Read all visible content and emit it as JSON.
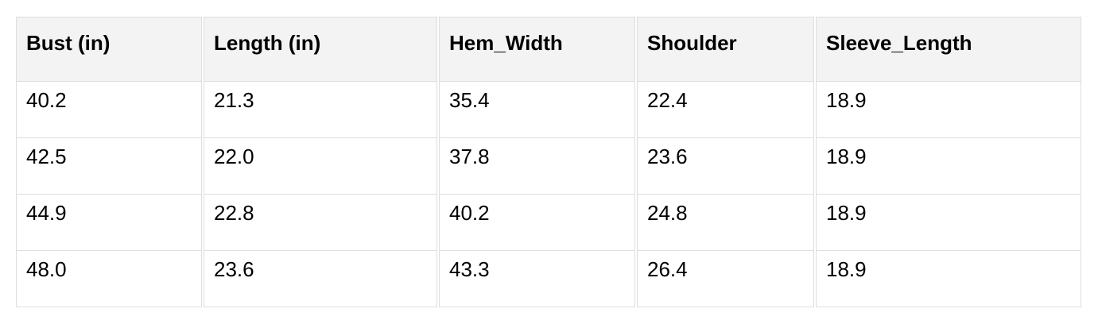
{
  "chart_data": {
    "type": "table",
    "title": "",
    "columns": [
      "Bust (in)",
      "Length (in)",
      "Hem_Width",
      "Shoulder",
      "Sleeve_Length"
    ],
    "rows": [
      [
        "40.2",
        "21.3",
        "35.4",
        "22.4",
        "18.9"
      ],
      [
        "42.5",
        "22.0",
        "37.8",
        "23.6",
        "18.9"
      ],
      [
        "44.9",
        "22.8",
        "40.2",
        "24.8",
        "18.9"
      ],
      [
        "48.0",
        "23.6",
        "43.3",
        "26.4",
        "18.9"
      ]
    ]
  },
  "colors": {
    "header_background": "#f3f3f3",
    "cell_background": "#ffffff",
    "border": "#dedede",
    "text": "#000000"
  }
}
